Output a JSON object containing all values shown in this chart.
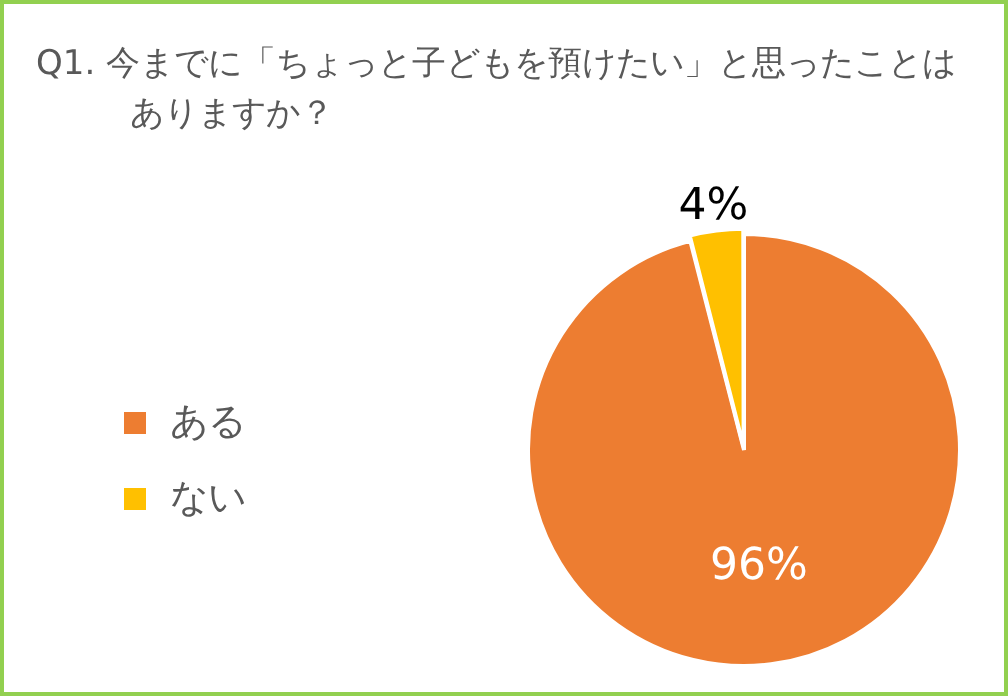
{
  "chart_data": {
    "type": "pie",
    "title": "Q1. 今までに「ちょっと子どもを預けたい」と思ったことはありますか？",
    "categories": [
      "ある",
      "ない"
    ],
    "values": [
      96,
      4
    ],
    "colors": [
      "#ed7d31",
      "#ffc000"
    ],
    "value_labels": [
      "96%",
      "4%"
    ],
    "legend": "left"
  }
}
